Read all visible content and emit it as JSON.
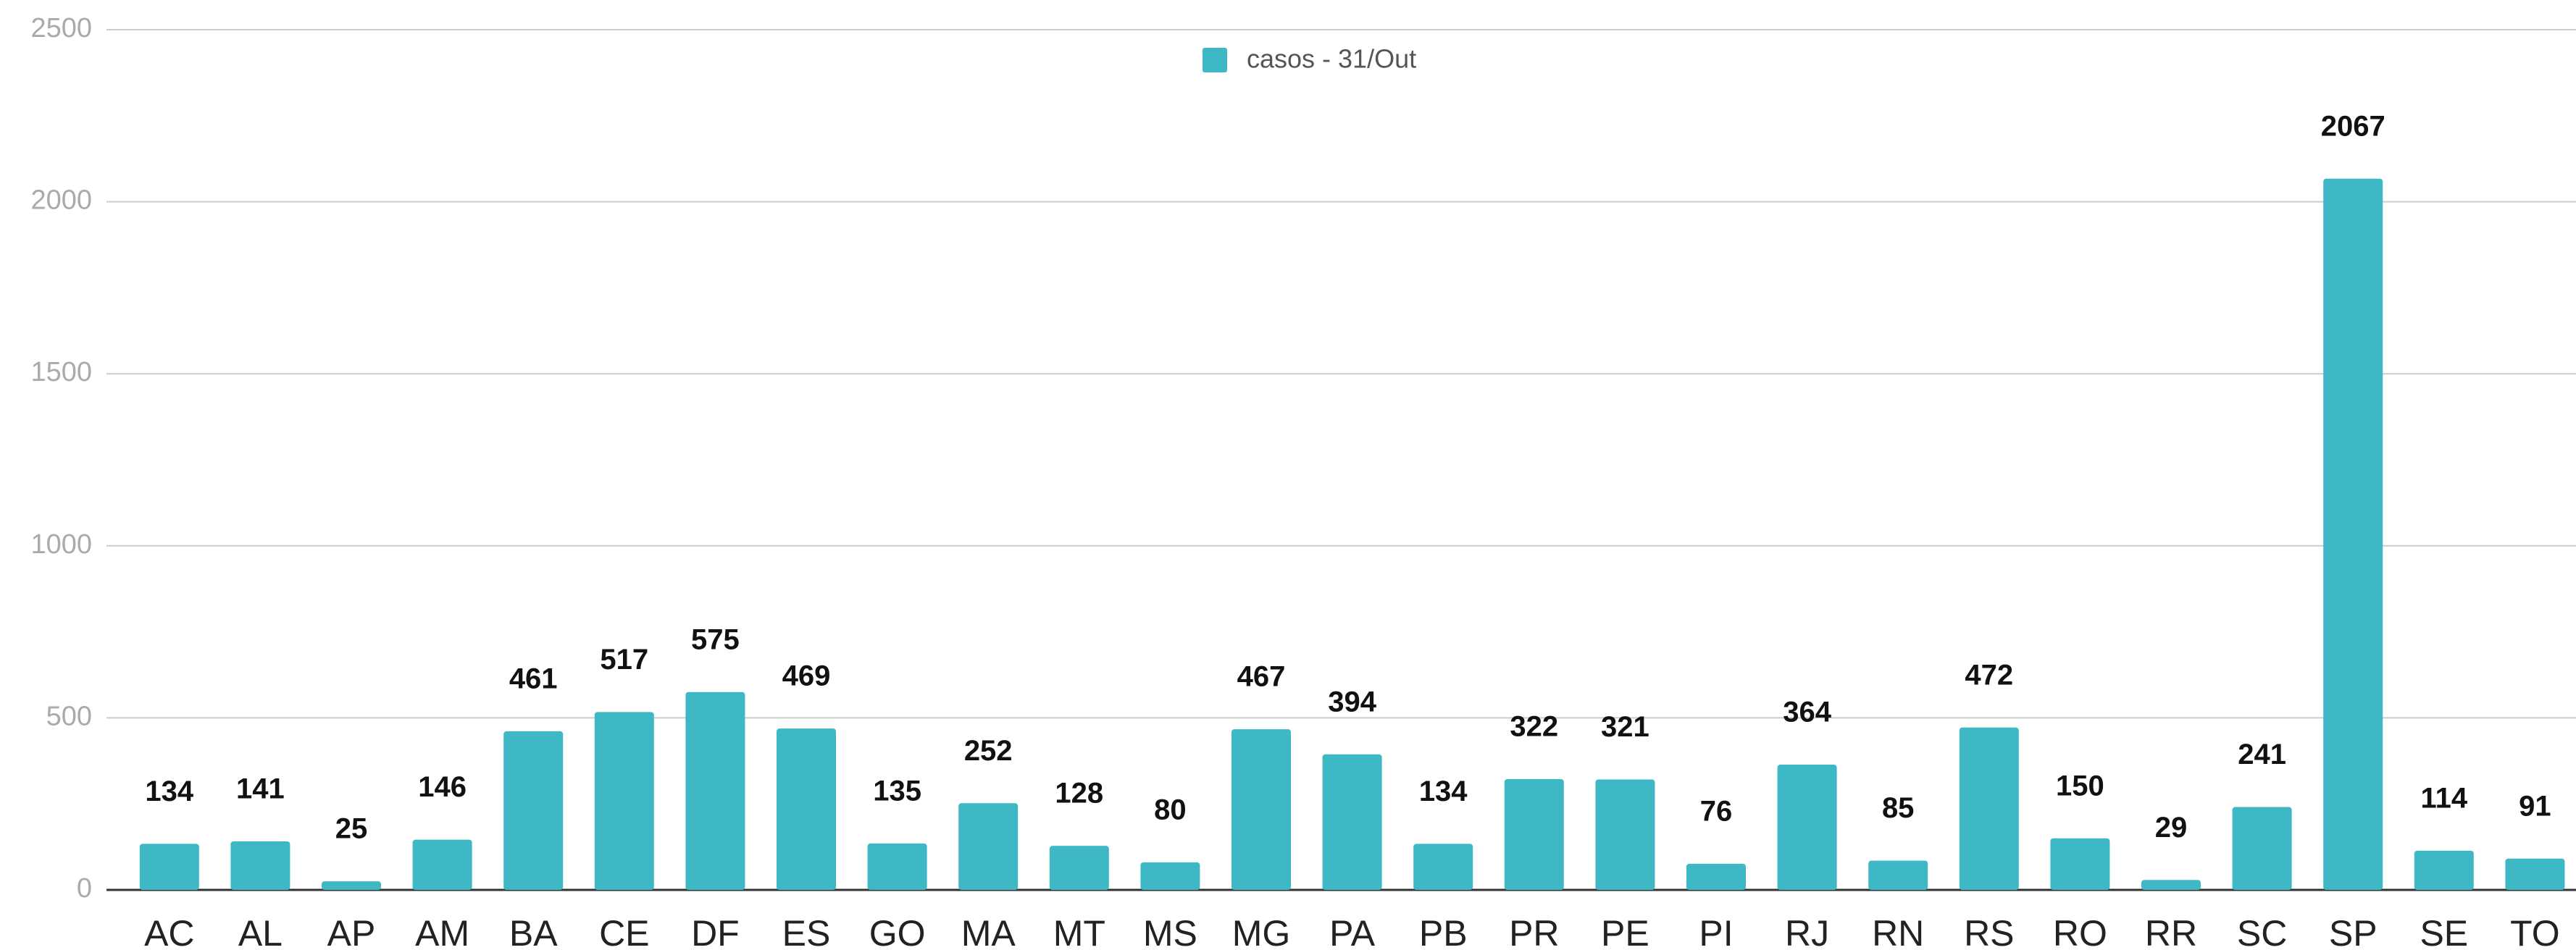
{
  "chart_data": {
    "type": "bar",
    "categories": [
      "AC",
      "AL",
      "AP",
      "AM",
      "BA",
      "CE",
      "DF",
      "ES",
      "GO",
      "MA",
      "MT",
      "MS",
      "MG",
      "PA",
      "PB",
      "PR",
      "PE",
      "PI",
      "RJ",
      "RN",
      "RS",
      "RO",
      "RR",
      "SC",
      "SP",
      "SE",
      "TO"
    ],
    "series": [
      {
        "name": "casos - 31/Out",
        "color": "#3fb8c5",
        "values": [
          134,
          141,
          25,
          146,
          461,
          517,
          575,
          469,
          135,
          252,
          128,
          80,
          467,
          394,
          134,
          322,
          321,
          76,
          364,
          85,
          472,
          150,
          29,
          241,
          2067,
          114,
          91
        ]
      }
    ],
    "ylim": [
      0,
      2500
    ],
    "yticks": [
      0,
      500,
      1000,
      1500,
      2000,
      2500
    ],
    "grid": true,
    "legend": "top"
  }
}
